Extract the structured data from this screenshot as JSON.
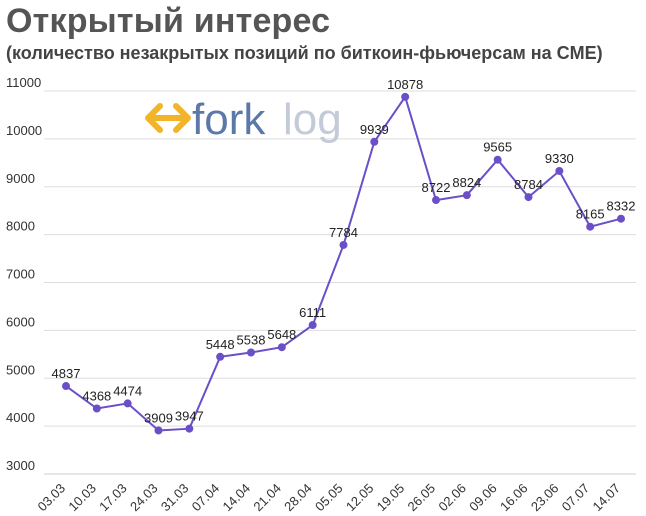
{
  "header": {
    "title": "Открытый интерес",
    "subtitle": "(количество незакрытых позиций по биткоин-фьючерсам на CME)"
  },
  "watermark": {
    "part1": "fork",
    "part2": "log",
    "part1_color": "#5b78a8",
    "part2_color": "#c3cad8",
    "arrow_color": "#f2b52a"
  },
  "chart_data": {
    "type": "line",
    "title": "Открытый интерес",
    "subtitle": "(количество незакрытых позиций по биткоин-фьючерсам на CME)",
    "categories": [
      "03.03",
      "10.03",
      "17.03",
      "24.03",
      "31.03",
      "07.04",
      "14.04",
      "21.04",
      "28.04",
      "05.05",
      "12.05",
      "19.05",
      "26.05",
      "02.06",
      "09.06",
      "16.06",
      "23.06",
      "07.07",
      "14.07"
    ],
    "series": [
      {
        "values": [
          4837,
          4368,
          4474,
          3909,
          3947,
          5448,
          5538,
          5648,
          6111,
          7784,
          9939,
          10878,
          8722,
          8824,
          9565,
          8784,
          9330,
          8165,
          8332
        ],
        "color": "#6a4fc8"
      }
    ],
    "yticks": [
      3000,
      4000,
      5000,
      6000,
      7000,
      8000,
      9000,
      10000,
      11000
    ],
    "ylim": [
      3000,
      11000
    ],
    "grid": true,
    "legend": "none"
  }
}
